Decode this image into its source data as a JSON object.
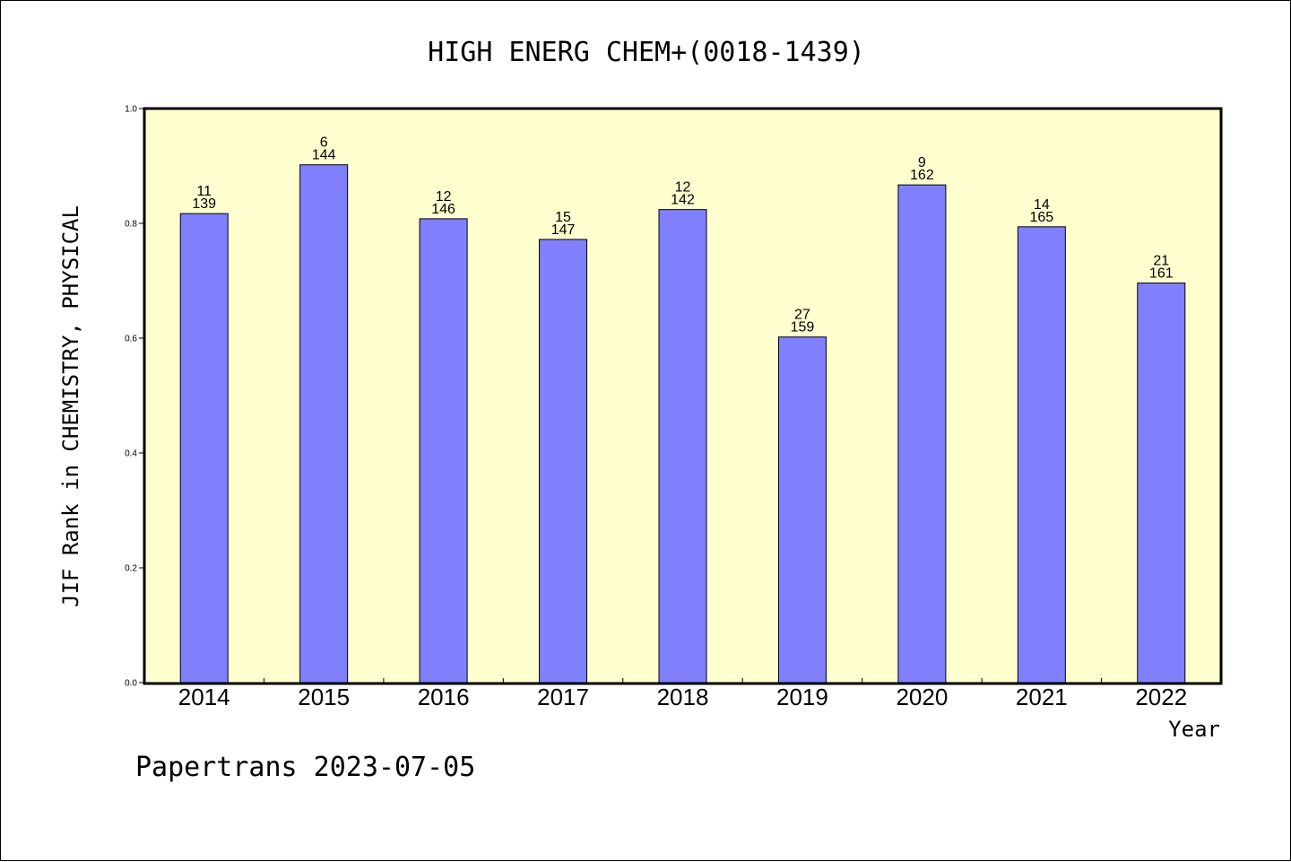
{
  "chart_data": {
    "type": "bar",
    "title": "HIGH ENERG CHEM+(0018-1439)",
    "xlabel": "Year",
    "ylabel": "JIF Rank in CHEMISTRY, PHYSICAL",
    "ylim": [
      0,
      1.0
    ],
    "yticks": [
      "0.0",
      "0.2",
      "0.4",
      "0.6",
      "0.8",
      "1.0"
    ],
    "grid": false,
    "categories": [
      "2014",
      "2015",
      "2016",
      "2017",
      "2018",
      "2019",
      "2020",
      "2021",
      "2022"
    ],
    "values": [
      0.817,
      0.902,
      0.808,
      0.772,
      0.824,
      0.602,
      0.867,
      0.794,
      0.696
    ],
    "rank": [
      "11",
      "6",
      "12",
      "15",
      "12",
      "27",
      "9",
      "14",
      "21"
    ],
    "total": [
      "139",
      "144",
      "146",
      "147",
      "142",
      "159",
      "162",
      "165",
      "161"
    ],
    "colors": {
      "bar": "#8080ff",
      "plot_background": "#ffffd0",
      "axis": "#000000"
    }
  },
  "footer": "Papertrans 2023-07-05"
}
